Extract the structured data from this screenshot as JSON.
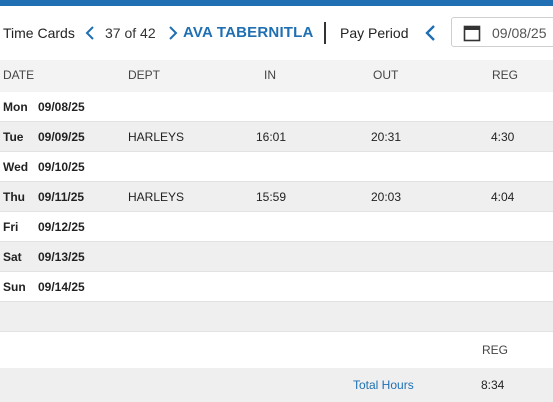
{
  "header": {
    "title": "Time Cards",
    "counter": "37 of 42",
    "employee_name": "AVA TABERNITLA",
    "pay_period_label": "Pay Period",
    "pay_period_date": "09/08/25",
    "accent_color": "#1f6fb2"
  },
  "columns": {
    "date": "DATE",
    "dept": "DEPT",
    "in": "IN",
    "out": "OUT",
    "reg": "REG"
  },
  "rows": [
    {
      "day": "Mon",
      "date": "09/08/25",
      "dept": "",
      "in": "",
      "out": "",
      "reg": ""
    },
    {
      "day": "Tue",
      "date": "09/09/25",
      "dept": "HARLEYS",
      "in": "16:01",
      "out": "20:31",
      "reg": "4:30"
    },
    {
      "day": "Wed",
      "date": "09/10/25",
      "dept": "",
      "in": "",
      "out": "",
      "reg": ""
    },
    {
      "day": "Thu",
      "date": "09/11/25",
      "dept": "HARLEYS",
      "in": "15:59",
      "out": "20:03",
      "reg": "4:04"
    },
    {
      "day": "Fri",
      "date": "09/12/25",
      "dept": "",
      "in": "",
      "out": "",
      "reg": ""
    },
    {
      "day": "Sat",
      "date": "09/13/25",
      "dept": "",
      "in": "",
      "out": "",
      "reg": ""
    },
    {
      "day": "Sun",
      "date": "09/14/25",
      "dept": "",
      "in": "",
      "out": "",
      "reg": ""
    }
  ],
  "summary": {
    "reg_header": "REG",
    "total_label": "Total Hours",
    "total_reg": "8:34"
  }
}
